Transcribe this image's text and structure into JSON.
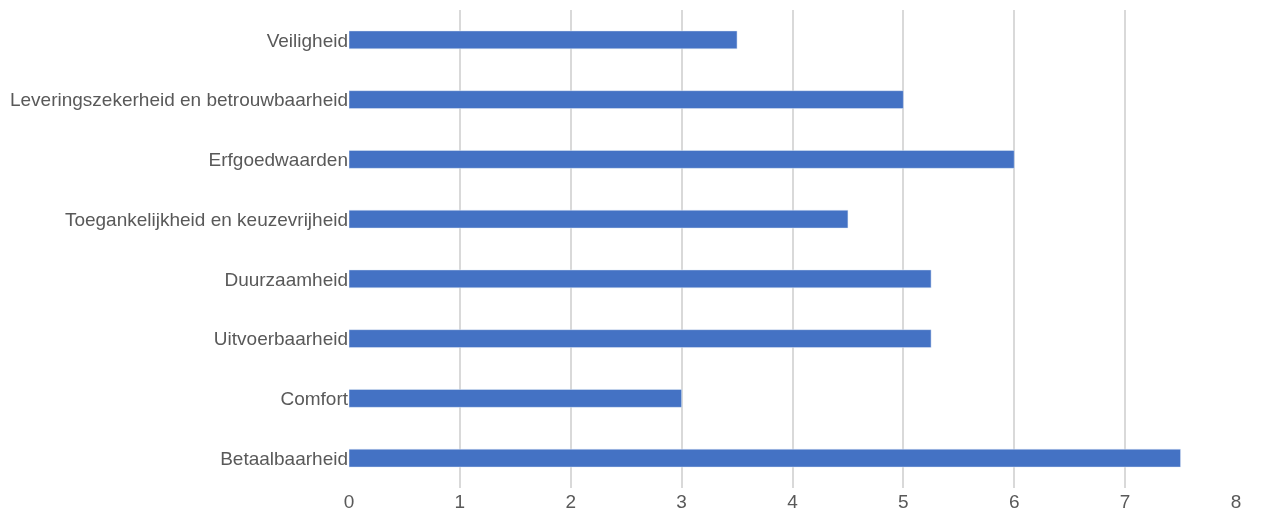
{
  "chart_data": {
    "type": "bar",
    "orientation": "horizontal",
    "categories": [
      "Veiligheid",
      "Leveringszekerheid en betrouwbaarheid",
      "Erfgoedwaarden",
      "Toegankelijkheid en keuzevrijheid",
      "Duurzaamheid",
      "Uitvoerbaarheid",
      "Comfort",
      "Betaalbaarheid"
    ],
    "values": [
      3.5,
      5,
      6,
      4.5,
      5.25,
      5.25,
      3,
      7.5
    ],
    "color": "#4472c4",
    "xlim": [
      0,
      8
    ],
    "xticks": [
      0,
      1,
      2,
      3,
      4,
      5,
      6,
      7,
      8
    ],
    "grid": "x",
    "legend": false
  }
}
